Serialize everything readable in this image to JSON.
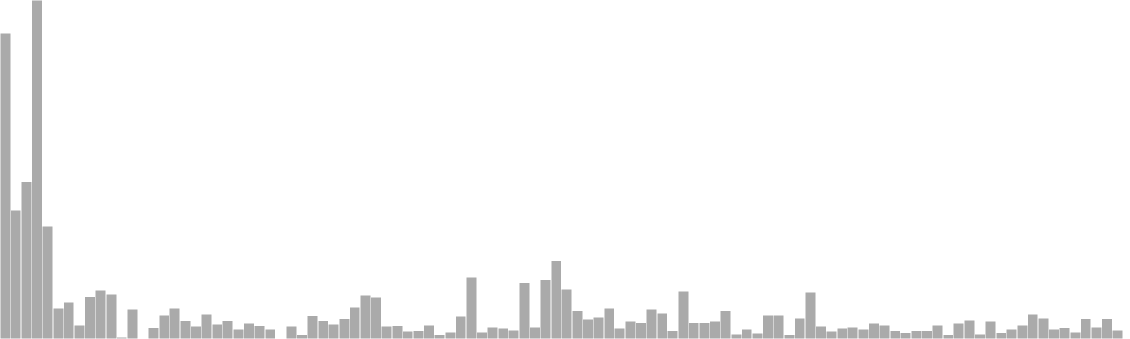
{
  "chart_data": {
    "type": "bar",
    "bar_color": "#aaaaaa",
    "bar_stroke": "#ffffff",
    "ylim": [
      0,
      480
    ],
    "values": [
      433,
      182,
      223,
      480,
      160,
      44,
      52,
      20,
      60,
      69,
      64,
      3,
      42,
      0,
      16,
      34,
      44,
      26,
      18,
      35,
      21,
      26,
      14,
      22,
      19,
      14,
      0,
      18,
      6,
      33,
      26,
      21,
      29,
      45,
      62,
      59,
      18,
      19,
      11,
      12,
      20,
      6,
      10,
      32,
      88,
      10,
      17,
      15,
      13,
      80,
      17,
      84,
      111,
      71,
      40,
      28,
      31,
      44,
      15,
      25,
      23,
      42,
      37,
      12,
      68,
      23,
      23,
      25,
      40,
      7,
      14,
      8,
      34,
      34,
      6,
      30,
      66,
      18,
      11,
      15,
      17,
      14,
      22,
      20,
      12,
      9,
      12,
      12,
      20,
      6,
      22,
      27,
      7,
      25,
      9,
      14,
      20,
      35,
      30,
      14,
      16,
      10,
      29,
      17,
      29,
      13
    ]
  }
}
